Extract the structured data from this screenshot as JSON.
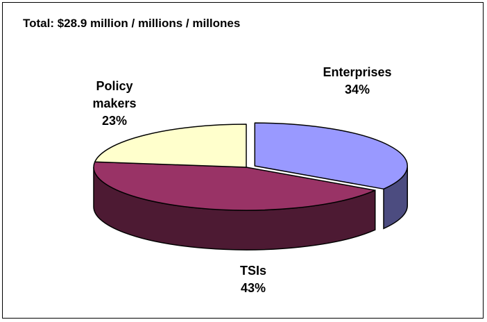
{
  "chart_data": {
    "type": "pie",
    "title": "Total:  $28.9 million / millions / millones",
    "slices": [
      {
        "label": "Enterprises",
        "percent": "34%",
        "value": 34,
        "color": "#9999ff",
        "side_color": "#4c4c80"
      },
      {
        "label": "TSIs",
        "percent": "43%",
        "value": 43,
        "color": "#993366",
        "side_color": "#4d1a33"
      },
      {
        "label": "Policy makers",
        "label_lines": [
          "Policy",
          "makers"
        ],
        "percent": "23%",
        "value": 23,
        "color": "#ffffcc",
        "side_color": "#808066"
      }
    ],
    "exploded": [
      "Enterprises"
    ],
    "style": "3d"
  }
}
